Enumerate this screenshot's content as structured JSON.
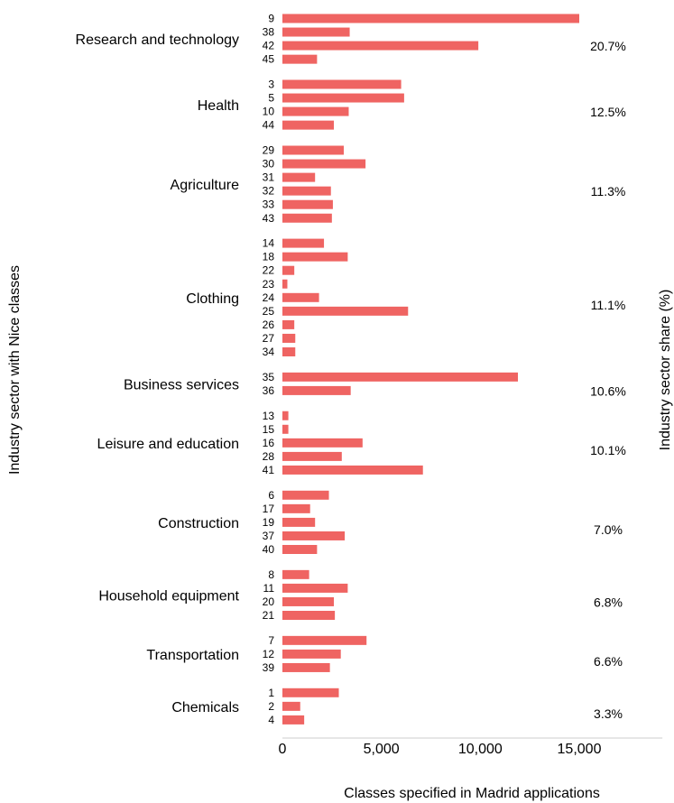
{
  "chart_data": {
    "type": "bar",
    "orientation": "horizontal",
    "xlabel": "Classes specified in Madrid applications",
    "ylabel": "Industry sector with Nice classes",
    "y2label": "Industry sector share (%)",
    "xlim": [
      0,
      19200
    ],
    "xticks": [
      0,
      5000,
      10000,
      15000
    ],
    "xtick_labels": [
      "0",
      "5,000",
      "10,000",
      "15,000"
    ],
    "grid": false,
    "bar_color": "#ef6462",
    "groups": [
      {
        "sector": "Research and technology",
        "share": "20.7%",
        "classes": [
          "9",
          "38",
          "42",
          "45"
        ],
        "values": [
          15000,
          3400,
          9900,
          1750
        ]
      },
      {
        "sector": "Health",
        "share": "12.5%",
        "classes": [
          "3",
          "5",
          "10",
          "44"
        ],
        "values": [
          6000,
          6150,
          3350,
          2600
        ]
      },
      {
        "sector": "Agriculture",
        "share": "11.3%",
        "classes": [
          "29",
          "30",
          "31",
          "32",
          "33",
          "43"
        ],
        "values": [
          3100,
          4200,
          1650,
          2450,
          2550,
          2500
        ]
      },
      {
        "sector": "Clothing",
        "share": "11.1%",
        "classes": [
          "14",
          "18",
          "22",
          "23",
          "24",
          "25",
          "26",
          "27",
          "34"
        ],
        "values": [
          2100,
          3300,
          600,
          250,
          1850,
          6350,
          600,
          650,
          650
        ]
      },
      {
        "sector": "Business services",
        "share": "10.6%",
        "classes": [
          "35",
          "36"
        ],
        "values": [
          11900,
          3450
        ]
      },
      {
        "sector": "Leisure and education",
        "share": "10.1%",
        "classes": [
          "13",
          "15",
          "16",
          "28",
          "41"
        ],
        "values": [
          300,
          300,
          4050,
          3000,
          7100
        ]
      },
      {
        "sector": "Construction",
        "share": "7.0%",
        "classes": [
          "6",
          "17",
          "19",
          "37",
          "40"
        ],
        "values": [
          2350,
          1400,
          1650,
          3150,
          1750
        ]
      },
      {
        "sector": "Household equipment",
        "share": "6.8%",
        "classes": [
          "8",
          "11",
          "20",
          "21"
        ],
        "values": [
          1350,
          3300,
          2600,
          2650
        ]
      },
      {
        "sector": "Transportation",
        "share": "6.6%",
        "classes": [
          "7",
          "12",
          "39"
        ],
        "values": [
          4250,
          2950,
          2400
        ]
      },
      {
        "sector": "Chemicals",
        "share": "3.3%",
        "classes": [
          "1",
          "2",
          "4"
        ],
        "values": [
          2850,
          900,
          1100
        ]
      }
    ]
  }
}
